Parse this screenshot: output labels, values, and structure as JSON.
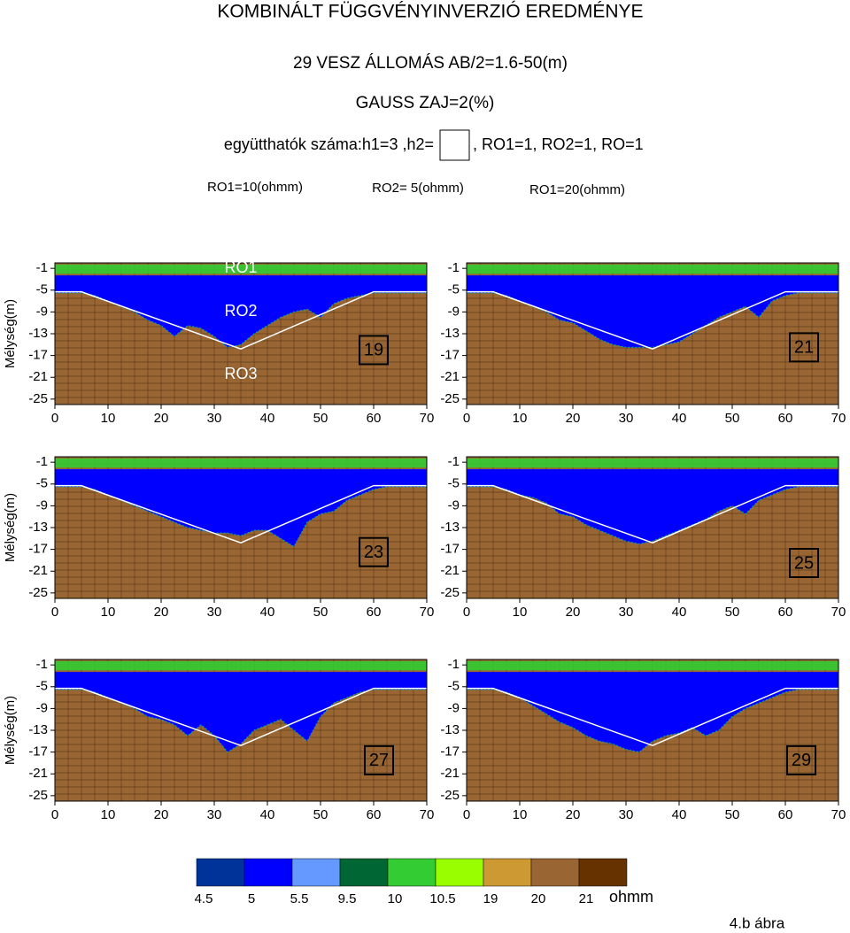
{
  "title": "KOMBINÁLT FÜGGVÉNYINVERZIÓ EREDMÉNYE",
  "subtitle": "29 VESZ ÁLLOMÁS AB/2=1.6-50(m)",
  "noise": "GAUSS ZAJ=2(%)",
  "coefficients_left": "együtthatók száma:h1=3 ,h2=",
  "coefficients_right": ", RO1=1, RO2=1, RO=1",
  "resistivity_labels": [
    "RO1=10(ohmm)",
    "RO2= 5(ohmm)",
    "RO1=20(ohmm)"
  ],
  "chart_data": [
    {
      "type": "profile",
      "label": "19",
      "ylabel": "Mélység(m)",
      "layer_labels": [
        "RO1",
        "RO2",
        "RO3"
      ],
      "xlim": [
        0,
        70
      ],
      "ylim": [
        -26,
        0
      ],
      "xticks": [
        0,
        10,
        20,
        30,
        40,
        50,
        60,
        70
      ],
      "yticks": [
        -1,
        -5,
        -9,
        -13,
        -17,
        -21,
        -25
      ],
      "surface_layer": [
        -0.3,
        -2
      ],
      "blue_top": -2.3,
      "x": [
        0,
        2.5,
        5,
        7.5,
        10,
        12.5,
        15,
        17.5,
        20,
        22.5,
        25,
        27.5,
        30,
        32.5,
        35,
        37.5,
        40,
        42.5,
        45,
        47.5,
        50,
        52.5,
        55,
        57.5,
        60,
        62.5,
        65,
        67.5,
        70
      ],
      "series": [
        {
          "color": "#0000ff",
          "values": [
            -5.5,
            -5.5,
            -5.5,
            -6,
            -7,
            -8,
            -9,
            -10.5,
            -11.5,
            -13.5,
            -11.5,
            -12,
            -13.5,
            -15.5,
            -15,
            -13,
            -11.5,
            -10,
            -9,
            -8.5,
            -10,
            -7.5,
            -6.5,
            -6,
            -5.5,
            -5.5,
            -5.5,
            -5.5,
            -5.5
          ]
        }
      ],
      "model_x": [
        0,
        5,
        35,
        60,
        70
      ],
      "model_y": [
        -5.3,
        -5.3,
        -15.8,
        -5.3,
        -5.3
      ]
    },
    {
      "type": "profile",
      "label": "21",
      "xlim": [
        0,
        70
      ],
      "ylim": [
        -26,
        0
      ],
      "xticks": [
        0,
        10,
        20,
        30,
        40,
        50,
        60,
        70
      ],
      "yticks": [
        -1,
        -5,
        -9,
        -13,
        -17,
        -21,
        -25
      ],
      "surface_layer": [
        -0.3,
        -2
      ],
      "blue_top": -2.3,
      "x": [
        0,
        2.5,
        5,
        7.5,
        10,
        12.5,
        15,
        17.5,
        20,
        22.5,
        25,
        27.5,
        30,
        32.5,
        35,
        37.5,
        40,
        42.5,
        45,
        47.5,
        50,
        52.5,
        55,
        57.5,
        60,
        62.5,
        65,
        67.5,
        70
      ],
      "series": [
        {
          "color": "#0000ff",
          "values": [
            -5.5,
            -5.5,
            -5.5,
            -6,
            -7,
            -8,
            -9,
            -10.5,
            -11,
            -12.5,
            -14,
            -15,
            -15.5,
            -15.5,
            -15.5,
            -15,
            -14.5,
            -13,
            -11.5,
            -10,
            -9,
            -8,
            -10,
            -7,
            -6,
            -5.5,
            -5.5,
            -5.5,
            -5.5
          ]
        }
      ],
      "model_x": [
        0,
        5,
        35,
        60,
        70
      ],
      "model_y": [
        -5.3,
        -5.3,
        -15.8,
        -5.3,
        -5.3
      ]
    },
    {
      "type": "profile",
      "label": "23",
      "ylabel": "Mélység(m)",
      "xlim": [
        0,
        70
      ],
      "ylim": [
        -26,
        0
      ],
      "xticks": [
        0,
        10,
        20,
        30,
        40,
        50,
        60,
        70
      ],
      "yticks": [
        -1,
        -5,
        -9,
        -13,
        -17,
        -21,
        -25
      ],
      "surface_layer": [
        -0.3,
        -2
      ],
      "blue_top": -2.3,
      "x": [
        0,
        2.5,
        5,
        7.5,
        10,
        12.5,
        15,
        17.5,
        20,
        22.5,
        25,
        27.5,
        30,
        32.5,
        35,
        37.5,
        40,
        42.5,
        45,
        47.5,
        50,
        52.5,
        55,
        57.5,
        60,
        62.5,
        65,
        67.5,
        70
      ],
      "series": [
        {
          "color": "#0000ff",
          "values": [
            -5.5,
            -5.5,
            -5.5,
            -6,
            -7,
            -8,
            -9,
            -10,
            -11,
            -12,
            -13,
            -13.5,
            -14,
            -14,
            -14.5,
            -13.5,
            -13.5,
            -15,
            -16.5,
            -12,
            -10.5,
            -10,
            -8,
            -7,
            -6,
            -5.5,
            -5.5,
            -5.5,
            -5.5
          ]
        }
      ],
      "model_x": [
        0,
        5,
        35,
        60,
        70
      ],
      "model_y": [
        -5.3,
        -5.3,
        -15.8,
        -5.3,
        -5.3
      ]
    },
    {
      "type": "profile",
      "label": "25",
      "xlim": [
        0,
        70
      ],
      "ylim": [
        -26,
        0
      ],
      "xticks": [
        0,
        10,
        20,
        30,
        40,
        50,
        60,
        70
      ],
      "yticks": [
        -1,
        -5,
        -9,
        -13,
        -17,
        -21,
        -25
      ],
      "surface_layer": [
        -0.3,
        -2
      ],
      "blue_top": -2.3,
      "x": [
        0,
        2.5,
        5,
        7.5,
        10,
        12.5,
        15,
        17.5,
        20,
        22.5,
        25,
        27.5,
        30,
        32.5,
        35,
        37.5,
        40,
        42.5,
        45,
        47.5,
        50,
        52.5,
        55,
        57.5,
        60,
        62.5,
        65,
        67.5,
        70
      ],
      "series": [
        {
          "color": "#0000ff",
          "values": [
            -5.5,
            -5.5,
            -5.5,
            -6,
            -7,
            -7.5,
            -8.5,
            -10.5,
            -11,
            -12.5,
            -13.5,
            -14.5,
            -15.5,
            -16,
            -15.5,
            -14.5,
            -13.5,
            -12.5,
            -11.5,
            -10,
            -9,
            -10.5,
            -8,
            -7,
            -6,
            -5.5,
            -5.5,
            -5.5,
            -5.5
          ]
        }
      ],
      "model_x": [
        0,
        5,
        35,
        60,
        70
      ],
      "model_y": [
        -5.3,
        -5.3,
        -15.8,
        -5.3,
        -5.3
      ]
    },
    {
      "type": "profile",
      "label": "27",
      "ylabel": "Mélység(m)",
      "xlim": [
        0,
        70
      ],
      "ylim": [
        -26,
        0
      ],
      "xticks": [
        0,
        10,
        20,
        30,
        40,
        50,
        60,
        70
      ],
      "yticks": [
        -1,
        -5,
        -9,
        -13,
        -17,
        -21,
        -25
      ],
      "surface_layer": [
        -0.3,
        -2
      ],
      "blue_top": -2.3,
      "x": [
        0,
        2.5,
        5,
        7.5,
        10,
        12.5,
        15,
        17.5,
        20,
        22.5,
        25,
        27.5,
        30,
        32.5,
        35,
        37.5,
        40,
        42.5,
        45,
        47.5,
        50,
        52.5,
        55,
        57.5,
        60,
        62.5,
        65,
        67.5,
        70
      ],
      "series": [
        {
          "color": "#0000ff",
          "values": [
            -5.5,
            -5.5,
            -5.5,
            -6,
            -7,
            -8,
            -9,
            -10.5,
            -11,
            -12,
            -14,
            -12,
            -14,
            -17,
            -15.5,
            -13,
            -12,
            -11,
            -13,
            -15,
            -10.5,
            -8,
            -7,
            -6,
            -5.5,
            -5.5,
            -5.5,
            -5.5,
            -5.5
          ]
        }
      ],
      "model_x": [
        0,
        5,
        35,
        60,
        70
      ],
      "model_y": [
        -5.3,
        -5.3,
        -15.8,
        -5.3,
        -5.3
      ]
    },
    {
      "type": "profile",
      "label": "29",
      "xlim": [
        0,
        70
      ],
      "ylim": [
        -26,
        0
      ],
      "xticks": [
        0,
        10,
        20,
        30,
        40,
        50,
        60,
        70
      ],
      "yticks": [
        -1,
        -5,
        -9,
        -13,
        -17,
        -21,
        -25
      ],
      "surface_layer": [
        -0.3,
        -2
      ],
      "blue_top": -2.3,
      "x": [
        0,
        2.5,
        5,
        7.5,
        10,
        12.5,
        15,
        17.5,
        20,
        22.5,
        25,
        27.5,
        30,
        32.5,
        35,
        37.5,
        40,
        42.5,
        45,
        47.5,
        50,
        52.5,
        55,
        57.5,
        60,
        62.5,
        65,
        67.5,
        70
      ],
      "series": [
        {
          "color": "#0000ff",
          "values": [
            -5.5,
            -5.5,
            -5.5,
            -6,
            -7,
            -8.5,
            -10,
            -11.5,
            -12.5,
            -14,
            -15,
            -15.5,
            -16.5,
            -17,
            -15,
            -14,
            -13.5,
            -12.5,
            -14,
            -13,
            -10.5,
            -9,
            -8,
            -7,
            -6,
            -5.5,
            -5.5,
            -5.5,
            -5.5
          ]
        }
      ],
      "model_x": [
        0,
        5,
        35,
        60,
        70
      ],
      "model_y": [
        -5.3,
        -5.3,
        -15.8,
        -5.3,
        -5.3
      ]
    }
  ],
  "colorbar": {
    "colors": [
      "#003399",
      "#0000ff",
      "#6699ff",
      "#006633",
      "#33cc33",
      "#99ff00",
      "#cc9933",
      "#996633",
      "#663300"
    ],
    "values": [
      4.5,
      5,
      5.5,
      9.5,
      10,
      10.5,
      19,
      20,
      21
    ],
    "unit": "ohmm"
  },
  "figure_label": "4.b ábra"
}
